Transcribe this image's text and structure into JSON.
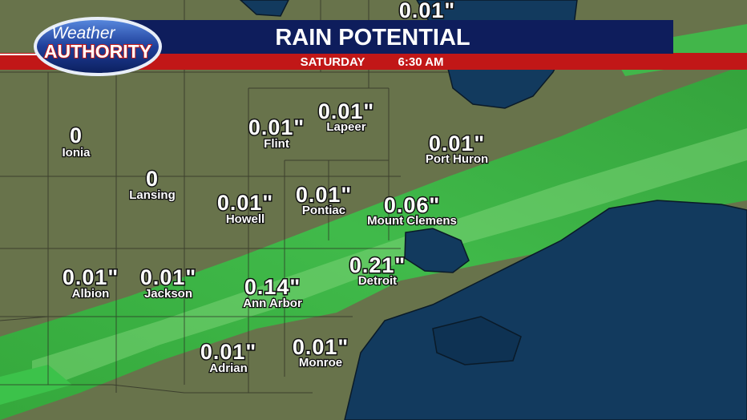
{
  "logo": {
    "line1": "Weather",
    "line2": "AUTHORITY"
  },
  "header": {
    "title": "RAIN POTENTIAL",
    "day": "SATURDAY",
    "time": "6:30 AM"
  },
  "partial_amount": "0.01\"",
  "cities": [
    {
      "name": "Ionia",
      "amount": "0"
    },
    {
      "name": "Lansing",
      "amount": "0"
    },
    {
      "name": "Flint",
      "amount": "0.01\""
    },
    {
      "name": "Lapeer",
      "amount": "0.01\""
    },
    {
      "name": "Port Huron",
      "amount": "0.01\""
    },
    {
      "name": "Howell",
      "amount": "0.01\""
    },
    {
      "name": "Pontiac",
      "amount": "0.01\""
    },
    {
      "name": "Mount Clemens",
      "amount": "0.06\""
    },
    {
      "name": "Albion",
      "amount": "0.01\""
    },
    {
      "name": "Jackson",
      "amount": "0.01\""
    },
    {
      "name": "Ann Arbor",
      "amount": "0.14\""
    },
    {
      "name": "Detroit",
      "amount": "0.21\""
    },
    {
      "name": "Adrian",
      "amount": "0.01\""
    },
    {
      "name": "Monroe",
      "amount": "0.01\""
    }
  ]
}
